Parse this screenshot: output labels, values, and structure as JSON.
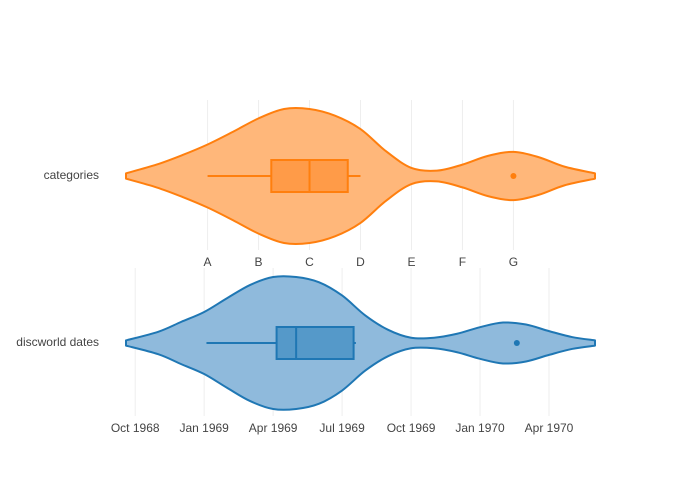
{
  "chart_data": [
    {
      "type": "violin",
      "orientation": "horizontal",
      "series_name": "categories",
      "color": "#ff7f0e",
      "fill_color": "#ffb77a",
      "box_fill": "#ff9b48",
      "category_order": [
        "A",
        "B",
        "C",
        "D",
        "E",
        "F",
        "G"
      ],
      "tick_labels": [
        "A",
        "B",
        "C",
        "D",
        "E",
        "F",
        "G"
      ],
      "xlim": [
        -1.6,
        7.6
      ],
      "box": {
        "whisker_low": 0,
        "q1": 1.25,
        "median": 2,
        "q3": 2.75,
        "whisker_high": 3
      },
      "outliers": [
        6
      ],
      "density": [
        [
          -1.6,
          0.04
        ],
        [
          -1.0,
          0.17
        ],
        [
          -0.5,
          0.31
        ],
        [
          0.0,
          0.47
        ],
        [
          0.5,
          0.66
        ],
        [
          1.0,
          0.86
        ],
        [
          1.5,
          1.0
        ],
        [
          2.0,
          1.0
        ],
        [
          2.5,
          0.9
        ],
        [
          3.0,
          0.7
        ],
        [
          3.5,
          0.37
        ],
        [
          4.0,
          0.12
        ],
        [
          4.5,
          0.08
        ],
        [
          5.0,
          0.17
        ],
        [
          5.5,
          0.3
        ],
        [
          6.0,
          0.36
        ],
        [
          6.5,
          0.28
        ],
        [
          7.0,
          0.14
        ],
        [
          7.6,
          0.04
        ]
      ]
    },
    {
      "type": "violin",
      "orientation": "horizontal",
      "series_name": "discworld dates",
      "color": "#1f77b4",
      "fill_color": "#8fbadc",
      "box_fill": "#5599c9",
      "tick_labels": [
        "Oct 1968",
        "Jan 1969",
        "Apr 1969",
        "Jul 1969",
        "Oct 1969",
        "Jan 1970",
        "Apr 1970"
      ],
      "tick_values": [
        0,
        3,
        6,
        9,
        12,
        15,
        18
      ],
      "x_unit": "months since Oct 1968",
      "xlim": [
        -0.4,
        20.0
      ],
      "box": {
        "whisker_low": 3.1,
        "q1": 6.15,
        "median": 7.0,
        "q3": 9.5,
        "whisker_high": 9.6
      },
      "outliers": [
        16.6
      ],
      "density": [
        [
          -0.4,
          0.04
        ],
        [
          1.0,
          0.17
        ],
        [
          2.0,
          0.32
        ],
        [
          3.0,
          0.47
        ],
        [
          4.0,
          0.68
        ],
        [
          5.0,
          0.88
        ],
        [
          6.0,
          1.0
        ],
        [
          7.0,
          1.0
        ],
        [
          8.0,
          0.92
        ],
        [
          9.0,
          0.72
        ],
        [
          10.0,
          0.42
        ],
        [
          11.0,
          0.2
        ],
        [
          12.0,
          0.08
        ],
        [
          13.0,
          0.08
        ],
        [
          14.0,
          0.14
        ],
        [
          15.0,
          0.24
        ],
        [
          16.0,
          0.31
        ],
        [
          17.0,
          0.28
        ],
        [
          18.0,
          0.18
        ],
        [
          19.0,
          0.09
        ],
        [
          20.0,
          0.04
        ]
      ]
    }
  ]
}
